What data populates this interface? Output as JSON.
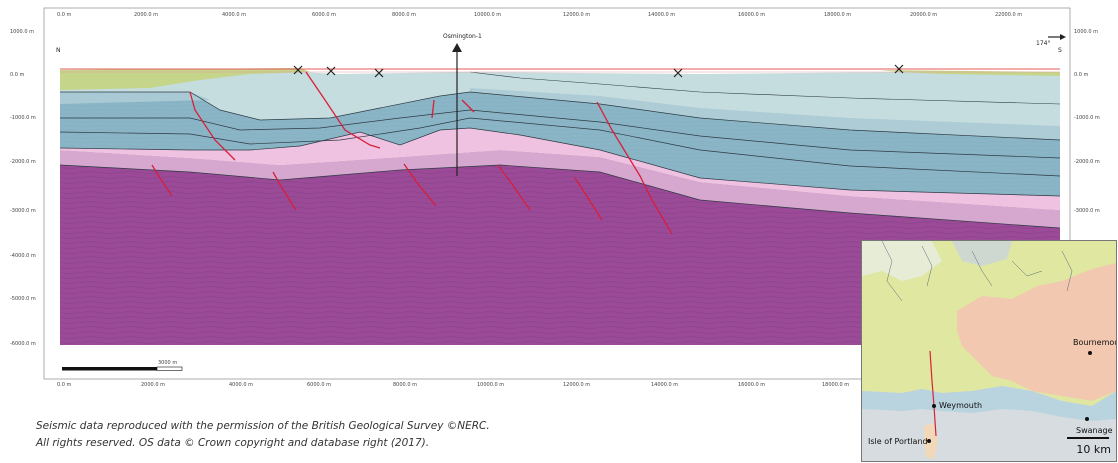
{
  "section": {
    "top_axis_ticks": [
      "0.0 m",
      "2000.0 m",
      "4000.0 m",
      "6000.0 m",
      "8000.0 m",
      "10000.0 m",
      "12000.0 m",
      "14000.0 m",
      "16000.0 m",
      "18000.0 m",
      "20000.0 m",
      "22000.0 m"
    ],
    "bottom_axis_ticks": [
      "0.0 m",
      "2000.0 m",
      "4000.0 m",
      "6000.0 m",
      "8000.0 m",
      "10000.0 m",
      "12000.0 m",
      "14000.0 m",
      "16000.0 m",
      "18000.0 m"
    ],
    "depth_ticks": [
      "1000.0 m",
      "0.0 m",
      "-1000.0 m",
      "-2000.0 m",
      "-3000.0 m",
      "-4000.0 m",
      "-5000.0 m",
      "-6000.0 m"
    ],
    "right_depth_ticks": [
      "1000.0 m",
      "0.0 m",
      "-1000.0 m",
      "-2000.0 m",
      "-3000.0 m"
    ],
    "well_label": "Osmington-1",
    "left_end_label": "N",
    "right_end_label": "S",
    "bearing_label": "174°",
    "scale_bar_label": "3000 m"
  },
  "caption": {
    "line1": "Seismic data reproduced with the permission of the British Geological Survey ©NERC.",
    "line2": "All rights reserved. OS data © Crown copyright and database right (2017)."
  },
  "inset_map": {
    "places": {
      "bournemouth": "Bournemouth",
      "weymouth": "Weymouth",
      "swanage": "Swanage",
      "portland": "Isle of Portland"
    },
    "scale_label": "10 km"
  },
  "colors": {
    "basement_purple": "#9a4a97",
    "pink": "#e6b8d8",
    "blue_teal": "#8ab5c6",
    "pale_blue": "#c6dde0",
    "surface_green": "#c5d58a",
    "fault_red": "#d81f3a",
    "sea_red_line": "#e35a5a"
  }
}
